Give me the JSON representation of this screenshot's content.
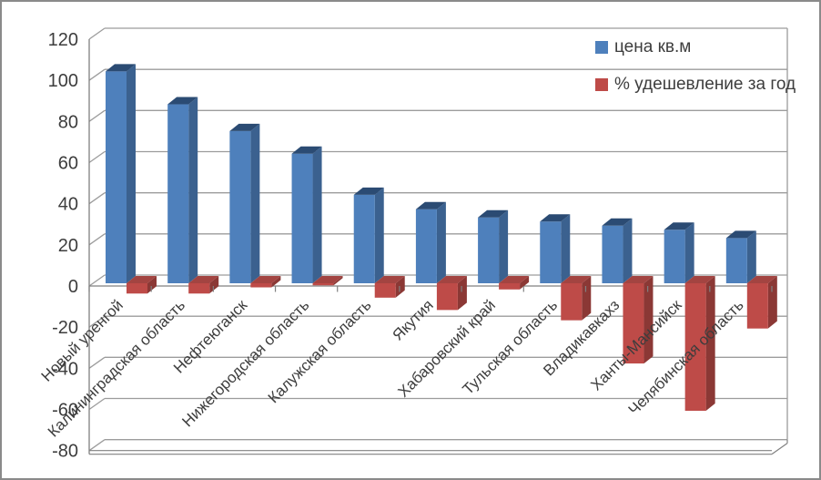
{
  "frame": {
    "background": "#FFFFFF",
    "border_color": "#8A8A8A"
  },
  "chart_data": {
    "type": "bar",
    "style": "3d-clustered-column",
    "title": "",
    "xlabel": "",
    "ylabel": "",
    "categories": [
      "Новый уренгой",
      "Калининградская область",
      "Нефтеюганск",
      "Нижегородская область",
      "Калужская область",
      "Якутия",
      "Хабаровский край",
      "Тульская область",
      "Владикавкахз",
      "Ханты-Мансийск",
      "Челябинская область"
    ],
    "series": [
      {
        "name": "цена кв.м",
        "values": [
          103,
          87,
          74,
          63,
          43,
          36,
          32,
          30,
          28,
          26,
          22
        ],
        "colors": {
          "front": "#4E80BC",
          "top": "#2B4B73",
          "side": "#3B618F"
        }
      },
      {
        "name": "% удешевление за год",
        "values": [
          -5,
          -5,
          -2,
          -1,
          -7,
          -13,
          -3,
          -18,
          -39,
          -62,
          -22
        ],
        "colors": {
          "front": "#BE4B48",
          "top": "#A34441",
          "side": "#8B3835"
        }
      }
    ],
    "ylim": [
      -80,
      120
    ],
    "ytick_step": 20,
    "yticks": [
      120,
      100,
      80,
      60,
      40,
      20,
      0,
      -20,
      -40,
      -60,
      -80
    ],
    "grid": true,
    "legend_position": "top-right",
    "axis_color": "#808080",
    "gridline_color": "#9C9C9C",
    "text_color": "#3D3D3D"
  }
}
